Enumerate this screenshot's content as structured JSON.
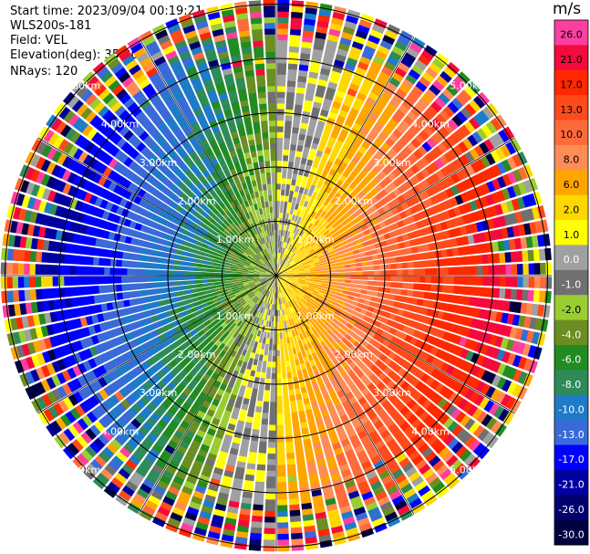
{
  "header": {
    "start_time": "Start time: 2023/09/04 00:19:21",
    "instrument": "WLS200s-181",
    "field": "Field: VEL",
    "elevation": "Elevation(deg): 35.30",
    "nrays": "NRays: 120"
  },
  "colorbar": {
    "unit": "m/s",
    "levels": [
      {
        "label": "26.0",
        "color": "#ff3fa0"
      },
      {
        "label": "21.0",
        "color": "#f50a3c"
      },
      {
        "label": "17.0",
        "color": "#ff2800"
      },
      {
        "label": "13.0",
        "color": "#ff4a1a"
      },
      {
        "label": "10.0",
        "color": "#ff6a3a"
      },
      {
        "label": "8.0",
        "color": "#ff8c55"
      },
      {
        "label": "6.0",
        "color": "#ffa500"
      },
      {
        "label": "2.0",
        "color": "#ffd700"
      },
      {
        "label": "1.0",
        "color": "#ffff00"
      },
      {
        "label": "0.0",
        "color": "#a0a0a0"
      },
      {
        "label": "-1.0",
        "color": "#707070"
      },
      {
        "label": "-2.0",
        "color": "#9acd32"
      },
      {
        "label": "-4.0",
        "color": "#6b8e23"
      },
      {
        "label": "-6.0",
        "color": "#228b22"
      },
      {
        "label": "-8.0",
        "color": "#2e8b57"
      },
      {
        "label": "-10.0",
        "color": "#1e7bc8"
      },
      {
        "label": "-13.0",
        "color": "#3a6ad8"
      },
      {
        "label": "-17.0",
        "color": "#0000ff"
      },
      {
        "label": "-21.0",
        "color": "#0000a0"
      },
      {
        "label": "-26.0",
        "color": "#000070"
      },
      {
        "label": "-30.0",
        "color": "#000040"
      }
    ]
  },
  "chart_data": {
    "type": "heatmap",
    "projection": "polar PPI",
    "field": "VEL",
    "unit": "m/s",
    "nrays": 120,
    "range_rings_km": [
      1,
      2,
      3,
      4,
      5
    ],
    "ring_labels_upper": [
      "1.00km",
      "2.00km",
      "3.00km",
      "4.00km",
      "5.00km"
    ],
    "ring_labels_lower": [
      "1.00km",
      "2.00km",
      "3.00km",
      "4.00km",
      "5.00km"
    ],
    "max_range_km": 5.0,
    "pattern": "approaching (negative) flow from the west, receding (positive) flow toward the east; speed grows with range; noisy outer ring",
    "grid": true
  }
}
